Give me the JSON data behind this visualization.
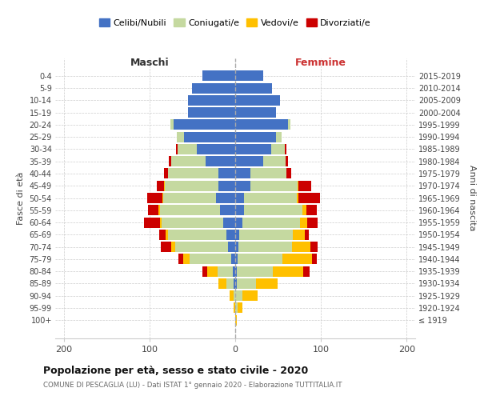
{
  "age_groups": [
    "100+",
    "95-99",
    "90-94",
    "85-89",
    "80-84",
    "75-79",
    "70-74",
    "65-69",
    "60-64",
    "55-59",
    "50-54",
    "45-49",
    "40-44",
    "35-39",
    "30-34",
    "25-29",
    "20-24",
    "15-19",
    "10-14",
    "5-9",
    "0-4"
  ],
  "birth_years": [
    "≤ 1919",
    "1920-1924",
    "1925-1929",
    "1930-1934",
    "1935-1939",
    "1940-1944",
    "1945-1949",
    "1950-1954",
    "1955-1959",
    "1960-1964",
    "1965-1969",
    "1970-1974",
    "1975-1979",
    "1980-1984",
    "1985-1989",
    "1990-1994",
    "1995-1999",
    "2000-2004",
    "2005-2009",
    "2010-2014",
    "2015-2019"
  ],
  "colors": {
    "celibi": "#4472c4",
    "coniugati": "#c5d9a0",
    "vedovi": "#ffc000",
    "divorziati": "#cc0000"
  },
  "maschi": {
    "celibi": [
      0,
      0,
      0,
      2,
      3,
      5,
      8,
      10,
      14,
      18,
      22,
      20,
      20,
      35,
      45,
      60,
      72,
      55,
      55,
      50,
      38
    ],
    "coniugati": [
      0,
      0,
      2,
      8,
      18,
      48,
      62,
      68,
      72,
      70,
      62,
      62,
      58,
      40,
      22,
      8,
      4,
      0,
      0,
      0,
      0
    ],
    "vedovi": [
      0,
      2,
      5,
      10,
      12,
      8,
      5,
      3,
      2,
      2,
      1,
      1,
      0,
      0,
      0,
      0,
      0,
      0,
      0,
      0,
      0
    ],
    "divorziati": [
      0,
      0,
      0,
      0,
      5,
      5,
      12,
      8,
      18,
      12,
      18,
      8,
      5,
      2,
      2,
      0,
      0,
      0,
      0,
      0,
      0
    ]
  },
  "femmine": {
    "celibi": [
      0,
      0,
      0,
      2,
      2,
      3,
      4,
      5,
      8,
      10,
      10,
      18,
      18,
      33,
      42,
      48,
      62,
      48,
      52,
      43,
      33
    ],
    "coniugati": [
      0,
      3,
      8,
      22,
      42,
      52,
      62,
      62,
      68,
      68,
      62,
      55,
      42,
      26,
      16,
      6,
      2,
      0,
      0,
      0,
      0
    ],
    "vedovi": [
      2,
      5,
      18,
      25,
      35,
      35,
      22,
      14,
      8,
      5,
      2,
      1,
      0,
      0,
      0,
      0,
      0,
      0,
      0,
      0,
      0
    ],
    "divorziati": [
      0,
      0,
      0,
      0,
      8,
      5,
      8,
      5,
      12,
      12,
      25,
      15,
      5,
      3,
      2,
      0,
      0,
      0,
      0,
      0,
      0
    ]
  },
  "xlim": [
    -210,
    210
  ],
  "xticks": [
    -200,
    -100,
    0,
    100,
    200
  ],
  "xticklabels": [
    "200",
    "100",
    "0",
    "100",
    "200"
  ],
  "title": "Popolazione per età, sesso e stato civile - 2020",
  "subtitle": "COMUNE DI PESCAGLIA (LU) - Dati ISTAT 1° gennaio 2020 - Elaborazione TUTTITALIA.IT",
  "ylabel_left": "Fasce di età",
  "ylabel_right": "Anni di nascita",
  "label_maschi": "Maschi",
  "label_femmine": "Femmine",
  "legend_labels": [
    "Celibi/Nubili",
    "Coniugati/e",
    "Vedovi/e",
    "Divorziati/e"
  ],
  "fig_width": 6.0,
  "fig_height": 5.0,
  "dpi": 100
}
